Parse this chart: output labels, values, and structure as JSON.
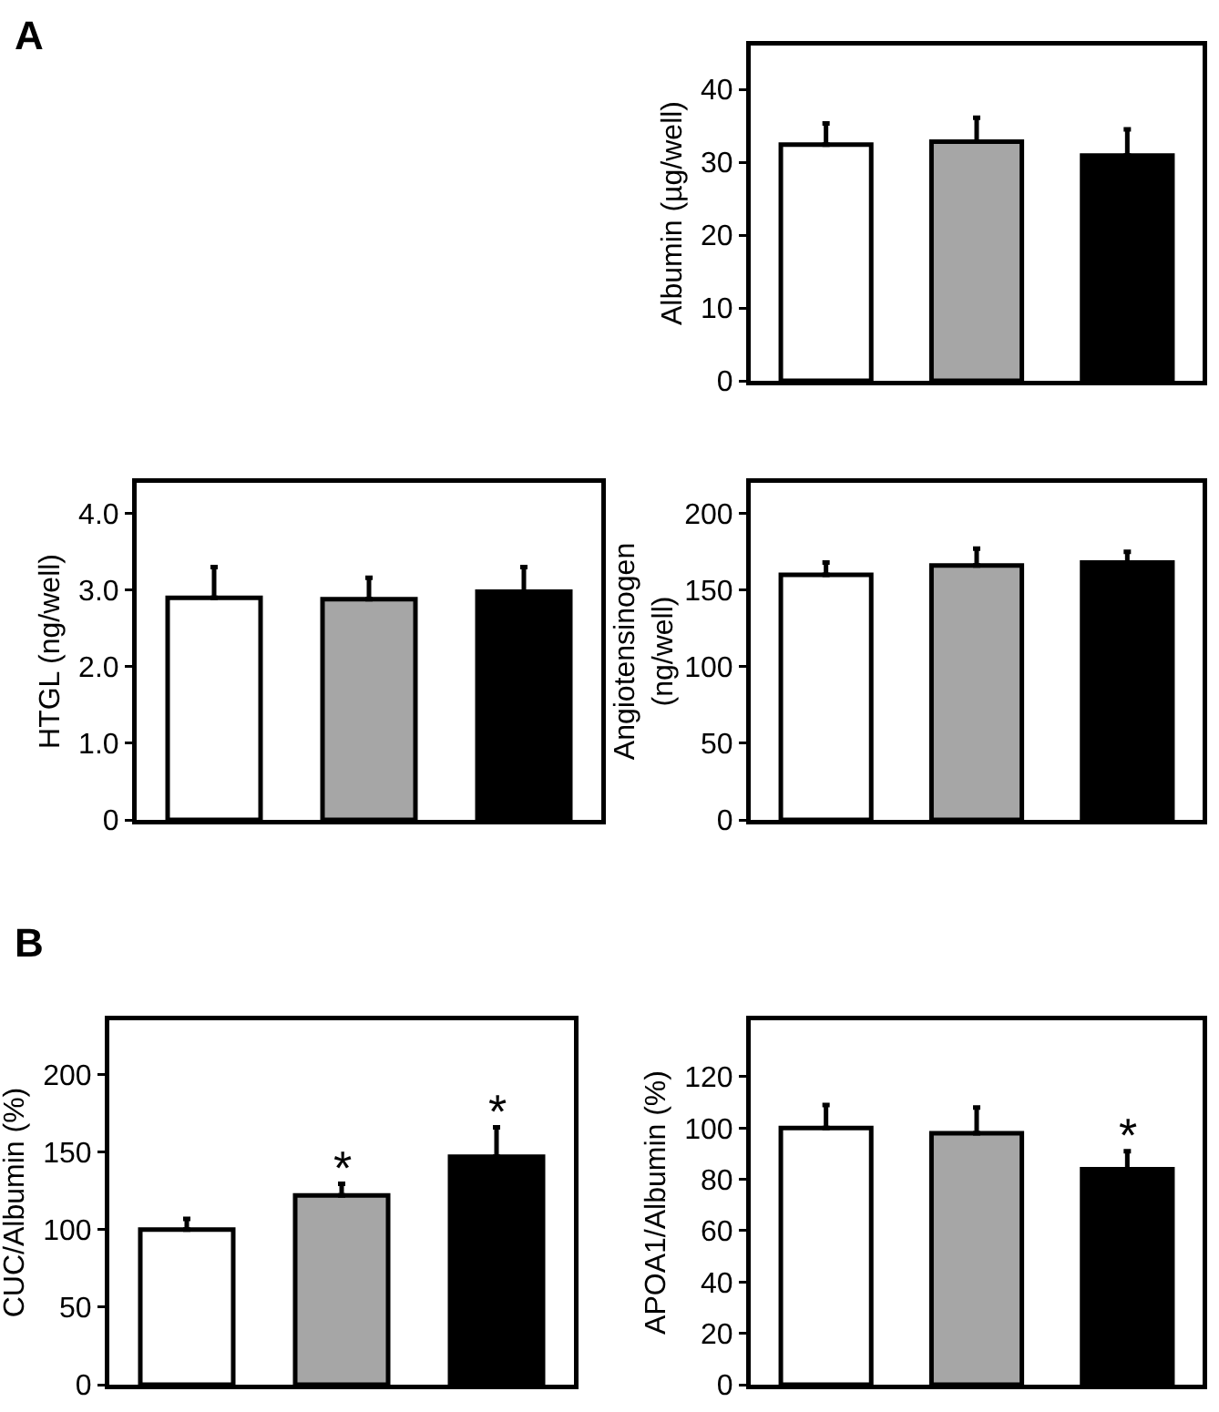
{
  "chart_data": [
    {
      "type": "bar",
      "categories": [
        null,
        null,
        null
      ],
      "values": [
        32.4,
        32.8,
        30.9
      ],
      "colors": [
        "#ffffff",
        "#a6a6a6",
        "#000000"
      ],
      "errors": [
        [
          32.4,
          35.3
        ],
        [
          32.8,
          36.1
        ],
        [
          30.9,
          34.5
        ]
      ],
      "ylabel": "Albumin (µg/well)",
      "ylim": [
        0,
        46
      ],
      "yticks": [
        0,
        10,
        20,
        30,
        40
      ],
      "tick_labels": "y",
      "annotations": [
        "A"
      ]
    },
    {
      "type": "bar",
      "categories": [
        null,
        null,
        null
      ],
      "values": [
        2.9,
        2.88,
        2.98
      ],
      "colors": [
        "#ffffff",
        "#a6a6a6",
        "#000000"
      ],
      "errors": [
        [
          2.9,
          3.3
        ],
        [
          2.88,
          3.16
        ],
        [
          2.98,
          3.3
        ]
      ],
      "ylabel": "HTGL (ng/well)",
      "ylim": [
        0,
        4.4
      ],
      "yticks": [
        0,
        {
          "value": 1,
          "label": "1.0"
        },
        {
          "value": 2,
          "label": "2.0"
        },
        {
          "value": 3,
          "label": "3.0"
        },
        {
          "value": 4,
          "label": "4.0"
        }
      ],
      "tick_labels": "y"
    },
    {
      "type": "bar",
      "categories": [
        null,
        null,
        null
      ],
      "values": [
        160,
        166,
        168
      ],
      "colors": [
        "#ffffff",
        "#a6a6a6",
        "#000000"
      ],
      "errors": [
        [
          160,
          168
        ],
        [
          166,
          177
        ],
        [
          168,
          175
        ]
      ],
      "ylabel": "Angiotensinogen\n(ng/well)",
      "ylim": [
        0,
        220
      ],
      "yticks": [
        0,
        50,
        100,
        150,
        200
      ],
      "tick_labels": "y"
    },
    {
      "type": "bar",
      "categories": [
        null,
        null,
        null
      ],
      "values": [
        100,
        122,
        147
      ],
      "colors": [
        "#ffffff",
        "#a6a6a6",
        "#000000"
      ],
      "errors": [
        [
          100,
          107
        ],
        [
          122,
          129.5
        ],
        [
          147,
          166
        ]
      ],
      "value_labels": [
        null,
        "*",
        "*"
      ],
      "ylabel": "CUC/Albumin (%)",
      "ylim": [
        0,
        235
      ],
      "yticks": [
        0,
        50,
        100,
        150,
        200
      ],
      "tick_labels": "y",
      "annotations": [
        "B"
      ]
    },
    {
      "type": "bar",
      "categories": [
        null,
        null,
        null
      ],
      "values": [
        100,
        98,
        84
      ],
      "colors": [
        "#ffffff",
        "#a6a6a6",
        "#000000"
      ],
      "errors": [
        [
          100,
          109
        ],
        [
          98,
          108
        ],
        [
          84,
          91
        ]
      ],
      "value_labels": [
        null,
        null,
        "*"
      ],
      "ylabel": "APOA1/Albumin (%)",
      "ylim": [
        0,
        142
      ],
      "yticks": [
        0,
        20,
        40,
        60,
        80,
        100,
        120
      ],
      "tick_labels": "y"
    }
  ]
}
